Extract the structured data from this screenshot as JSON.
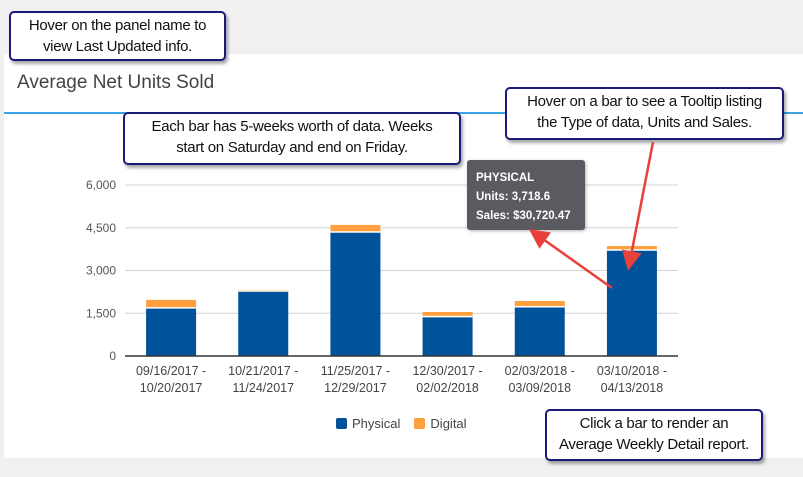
{
  "panel": {
    "title": "Average Net Units Sold"
  },
  "callouts": {
    "panel_name": [
      "Hover on the panel name to",
      "view Last Updated info."
    ],
    "bar_weeks": [
      "Each bar has 5-weeks worth of data.  Weeks",
      "start on Saturday and end on Friday."
    ],
    "tooltip_hint": [
      "Hover on a bar to see a Tooltip listing",
      "the Type of data, Units and Sales."
    ],
    "click_hint": [
      "Click a bar to render an",
      "Average Weekly Detail report."
    ]
  },
  "tooltip": {
    "type": "PHYSICAL",
    "units": "Units: 3,718.6",
    "sales": "Sales: $30,720.47"
  },
  "legend": [
    {
      "label": "Physical",
      "color": "#00529b"
    },
    {
      "label": "Digital",
      "color": "#ff9f40"
    }
  ],
  "chart_data": {
    "type": "bar",
    "stacked": true,
    "categories": [
      [
        "09/16/2017 -",
        "10/20/2017"
      ],
      [
        "10/21/2017 -",
        "11/24/2017"
      ],
      [
        "11/25/2017 -",
        "12/29/2017"
      ],
      [
        "12/30/2017 -",
        "02/02/2018"
      ],
      [
        "02/03/2018 -",
        "03/09/2018"
      ],
      [
        "03/10/2018 -",
        "04/13/2018"
      ]
    ],
    "series": [
      {
        "name": "Physical",
        "color": "#00529b",
        "values": [
          1690,
          2280,
          4350,
          1380,
          1730,
          3718.6
        ]
      },
      {
        "name": "Digital",
        "color": "#ff9f40",
        "values": [
          280,
          40,
          250,
          165,
          200,
          140
        ]
      }
    ],
    "ylim": [
      0,
      6000
    ],
    "yticks": [
      "0",
      "1,500",
      "3,000",
      "4,500",
      "6,000"
    ],
    "ytick_values": [
      0,
      1500,
      3000,
      4500,
      6000
    ],
    "grid": true,
    "legend_position": "bottom"
  }
}
